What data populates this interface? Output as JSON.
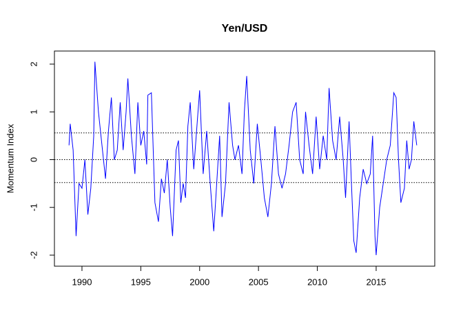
{
  "chart_data": {
    "type": "line",
    "title": "Yen/USD",
    "ylabel": "Momentum Index",
    "x": [
      1988.9,
      1989.0,
      1989.25,
      1989.5,
      1989.75,
      1990.0,
      1990.25,
      1990.5,
      1990.75,
      1991.0,
      1991.1,
      1991.4,
      1991.7,
      1992.0,
      1992.25,
      1992.5,
      1992.75,
      1993.0,
      1993.25,
      1993.5,
      1993.75,
      1993.9,
      1994.2,
      1994.5,
      1994.75,
      1995.0,
      1995.25,
      1995.5,
      1995.6,
      1995.9,
      1996.2,
      1996.5,
      1996.75,
      1997.0,
      1997.25,
      1997.5,
      1997.7,
      1998.0,
      1998.2,
      1998.4,
      1998.6,
      1998.8,
      1999.0,
      1999.2,
      1999.5,
      1999.8,
      2000.0,
      2000.3,
      2000.6,
      2000.9,
      2001.2,
      2001.4,
      2001.7,
      2001.9,
      2002.2,
      2002.5,
      2002.8,
      2003.0,
      2003.3,
      2003.6,
      2003.8,
      2004.0,
      2004.3,
      2004.6,
      2004.9,
      2005.2,
      2005.5,
      2005.8,
      2006.1,
      2006.4,
      2006.7,
      2007.0,
      2007.3,
      2007.6,
      2007.9,
      2008.2,
      2008.5,
      2008.8,
      2009.0,
      2009.3,
      2009.6,
      2009.9,
      2010.2,
      2010.5,
      2010.8,
      2011.0,
      2011.3,
      2011.6,
      2011.9,
      2012.2,
      2012.4,
      2012.7,
      2012.9,
      2013.1,
      2013.3,
      2013.6,
      2013.9,
      2014.2,
      2014.5,
      2014.7,
      2014.9,
      2015.0,
      2015.3,
      2015.6,
      2015.9,
      2016.2,
      2016.5,
      2016.7,
      2016.9,
      2017.1,
      2017.4,
      2017.6,
      2017.8,
      2018.0,
      2018.2,
      2018.45
    ],
    "series": [
      {
        "color": "#0000ff",
        "values": [
          0.3,
          0.75,
          0.2,
          -1.6,
          -0.5,
          -0.6,
          0.0,
          -1.15,
          -0.6,
          0.5,
          2.05,
          1.0,
          0.3,
          -0.4,
          0.6,
          1.3,
          0.0,
          0.2,
          1.2,
          0.2,
          1.0,
          1.7,
          0.5,
          -0.3,
          1.2,
          0.3,
          0.6,
          -0.1,
          1.35,
          1.4,
          -0.9,
          -1.3,
          -0.4,
          -0.7,
          0.0,
          -1.0,
          -1.6,
          0.2,
          0.4,
          -0.9,
          -0.5,
          -0.8,
          0.7,
          1.2,
          -0.2,
          0.8,
          1.45,
          -0.3,
          0.6,
          -0.5,
          -1.5,
          -0.7,
          0.5,
          -1.2,
          -0.5,
          1.2,
          0.3,
          0.0,
          0.3,
          -0.3,
          1.0,
          1.75,
          0.2,
          -0.5,
          0.75,
          0.0,
          -0.8,
          -1.2,
          -0.5,
          0.7,
          -0.3,
          -0.6,
          -0.3,
          0.3,
          1.0,
          1.2,
          0.0,
          -0.3,
          1.0,
          0.3,
          -0.3,
          0.9,
          -0.2,
          0.5,
          0.0,
          1.5,
          0.4,
          0.0,
          0.9,
          0.0,
          -0.8,
          0.8,
          -0.5,
          -1.7,
          -1.95,
          -0.8,
          -0.2,
          -0.5,
          -0.3,
          0.5,
          -1.6,
          -2.0,
          -1.0,
          -0.5,
          0.0,
          0.3,
          1.4,
          1.3,
          0.0,
          -0.9,
          -0.6,
          0.4,
          -0.2,
          0.0,
          0.8,
          0.3
        ]
      }
    ],
    "xlim": [
      1987.66,
      2019.98
    ],
    "xticks": [
      1990,
      1995,
      2000,
      2005,
      2010,
      2015
    ],
    "ylim": [
      -2.231,
      2.274
    ],
    "yticks": [
      -2,
      -1,
      0,
      1,
      2
    ],
    "hlines": [
      0.56,
      0,
      -0.48
    ]
  }
}
